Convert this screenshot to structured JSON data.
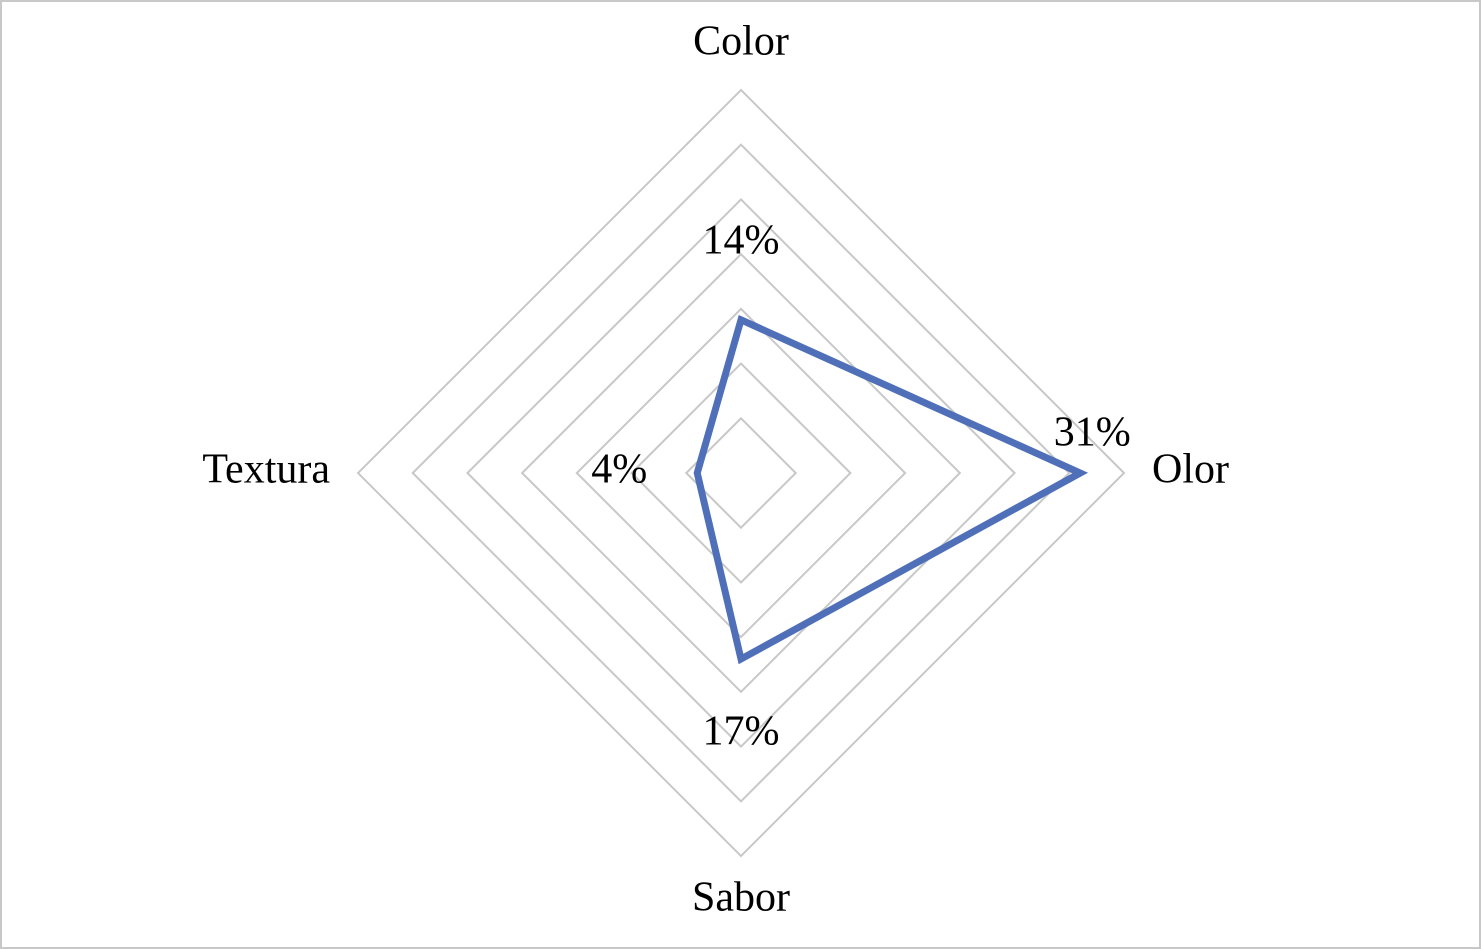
{
  "chart_data": {
    "type": "radar",
    "categories": [
      "Color",
      "Olor",
      "Sabor",
      "Textura"
    ],
    "series": [
      {
        "color": "#4f70b8",
        "values": [
          14,
          31,
          17,
          4
        ],
        "value_labels": [
          "14%",
          "31%",
          "17%",
          "4%"
        ]
      }
    ],
    "rlim": [
      0,
      35
    ],
    "rticks": [
      0,
      5,
      10,
      15,
      20,
      25,
      30,
      35
    ],
    "grid": true
  }
}
